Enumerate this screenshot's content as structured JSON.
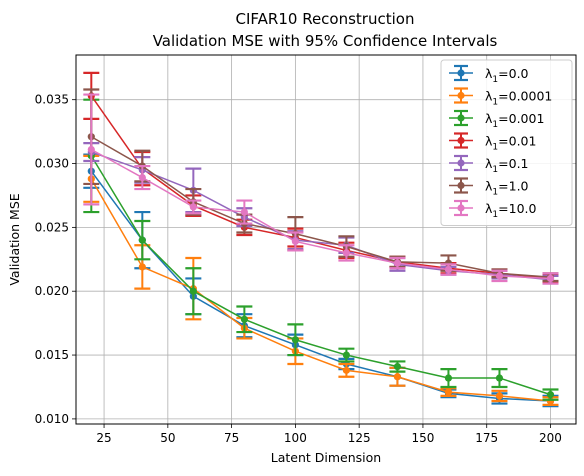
{
  "chart_data": {
    "type": "line",
    "title_lines": [
      "CIFAR10 Reconstruction",
      "Validation MSE with 95% Confidence Intervals"
    ],
    "xlabel": "Latent Dimension",
    "ylabel": "Validation MSE",
    "xlim": [
      14,
      210
    ],
    "ylim": [
      0.0096,
      0.0385
    ],
    "xticks": [
      25,
      50,
      75,
      100,
      125,
      150,
      175,
      200
    ],
    "xtick_labels": [
      "25",
      "50",
      "75",
      "100",
      "125",
      "150",
      "175",
      "200"
    ],
    "yticks": [
      0.01,
      0.015,
      0.02,
      0.025,
      0.03,
      0.035
    ],
    "ytick_labels": [
      "0.010",
      "0.015",
      "0.020",
      "0.025",
      "0.030",
      "0.035"
    ],
    "grid": true,
    "legend_position": "top-right",
    "x": [
      20,
      40,
      60,
      80,
      100,
      120,
      140,
      160,
      180,
      200
    ],
    "series": [
      {
        "name": "λ1=0.0",
        "legend_symbol": "λ",
        "legend_sub": "1",
        "legend_value": "=0.0",
        "color": "#1f77b4",
        "values": [
          0.0294,
          0.024,
          0.0196,
          0.0173,
          0.0158,
          0.0143,
          0.0133,
          0.012,
          0.0116,
          0.0114
        ],
        "err": [
          0.0013,
          0.0022,
          0.0014,
          0.0009,
          0.0008,
          0.0004,
          0.0007,
          0.0003,
          0.0004,
          0.0004
        ]
      },
      {
        "name": "λ1=0.0001",
        "legend_symbol": "λ",
        "legend_sub": "1",
        "legend_value": "=0.0001",
        "color": "#ff7f0e",
        "values": [
          0.0288,
          0.0219,
          0.0202,
          0.0171,
          0.0153,
          0.0138,
          0.0133,
          0.0121,
          0.0118,
          0.0114
        ],
        "err": [
          0.0018,
          0.0017,
          0.0024,
          0.0008,
          0.001,
          0.0005,
          0.0007,
          0.0003,
          0.0004,
          0.0003
        ]
      },
      {
        "name": "λ1=0.001",
        "legend_symbol": "λ",
        "legend_sub": "1",
        "legend_value": "=0.001",
        "color": "#2ca02c",
        "values": [
          0.0306,
          0.024,
          0.02,
          0.0178,
          0.0162,
          0.015,
          0.0141,
          0.0132,
          0.0132,
          0.0119
        ],
        "err": [
          0.0044,
          0.0015,
          0.0018,
          0.001,
          0.0012,
          0.0005,
          0.0004,
          0.0007,
          0.0007,
          0.0004
        ]
      },
      {
        "name": "λ1=0.01",
        "legend_symbol": "λ",
        "legend_sub": "1",
        "legend_value": "=0.01",
        "color": "#d62728",
        "values": [
          0.0353,
          0.0296,
          0.0267,
          0.025,
          0.0242,
          0.0232,
          0.0223,
          0.0218,
          0.0214,
          0.021
        ],
        "err": [
          0.0018,
          0.0013,
          0.0008,
          0.0006,
          0.0007,
          0.0006,
          0.0004,
          0.0004,
          0.0003,
          0.0003
        ]
      },
      {
        "name": "λ1=0.1",
        "legend_symbol": "λ",
        "legend_sub": "1",
        "legend_value": "=0.1",
        "color": "#9467bd",
        "values": [
          0.0309,
          0.0295,
          0.0279,
          0.0258,
          0.024,
          0.0236,
          0.0221,
          0.0216,
          0.0213,
          0.0209
        ],
        "err": [
          0.0007,
          0.001,
          0.0017,
          0.0007,
          0.0007,
          0.0006,
          0.0005,
          0.0003,
          0.0003,
          0.0003
        ]
      },
      {
        "name": "λ1=1.0",
        "legend_symbol": "λ",
        "legend_sub": "1",
        "legend_value": "=1.0",
        "color": "#8c564b",
        "values": [
          0.0321,
          0.0298,
          0.027,
          0.0253,
          0.0245,
          0.0235,
          0.0223,
          0.0222,
          0.0214,
          0.0211
        ],
        "err": [
          0.0037,
          0.0012,
          0.001,
          0.0007,
          0.0013,
          0.0008,
          0.0004,
          0.0006,
          0.0003,
          0.0003
        ]
      },
      {
        "name": "λ1=10.0",
        "legend_symbol": "λ",
        "legend_sub": "1",
        "legend_value": "=10.0",
        "color": "#e377c2",
        "values": [
          0.0311,
          0.0289,
          0.0266,
          0.0262,
          0.0239,
          0.023,
          0.0222,
          0.0217,
          0.0212,
          0.021
        ],
        "err": [
          0.0043,
          0.0009,
          0.0005,
          0.0009,
          0.0007,
          0.0006,
          0.0004,
          0.0004,
          0.0004,
          0.0004
        ]
      }
    ]
  }
}
